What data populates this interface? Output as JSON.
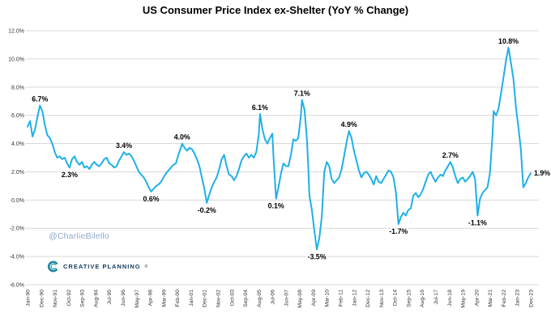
{
  "title": "US Consumer Price Index ex-Shelter (YoY % Change)",
  "watermark": {
    "handle": "@CharlieBilello",
    "brand": "CREATIVE PLANNING",
    "reg": "®"
  },
  "chart_data": {
    "type": "line",
    "title": "US Consumer Price Index ex-Shelter (YoY % Change)",
    "xlabel": "",
    "ylabel": "",
    "ylim": [
      -6,
      12
    ],
    "grid": true,
    "legend": "none",
    "line_color": "#1fb0e8",
    "grid_color": "#d9d9d9",
    "tick_color": "#333333",
    "annotation_color": "#000000",
    "y_ticks": [
      {
        "v": 12,
        "label": "12.0%"
      },
      {
        "v": 10,
        "label": "10.0%"
      },
      {
        "v": 8,
        "label": "8.0%"
      },
      {
        "v": 6,
        "label": "6.0%"
      },
      {
        "v": 4,
        "label": "4.0%"
      },
      {
        "v": 2,
        "label": "2.0%"
      },
      {
        "v": 0,
        "label": "0.0%"
      },
      {
        "v": -2,
        "label": "-2.0%"
      },
      {
        "v": -4,
        "label": "-4.0%"
      },
      {
        "v": -6,
        "label": "-6.0%"
      }
    ],
    "x_tick_month_step": 11,
    "x_domain_months": [
      0,
      407
    ],
    "x_tick_labels": [
      "Jan-90",
      "Dec-90",
      "Nov-91",
      "Oct-92",
      "Sep-93",
      "Aug-94",
      "Jul-95",
      "Jun-96",
      "May-97",
      "Apr-98",
      "Mar-99",
      "Feb-00",
      "Jan-01",
      "Dec-01",
      "Nov-02",
      "Oct-03",
      "Sep-04",
      "Aug-05",
      "Jul-06",
      "Jun-07",
      "May-08",
      "Apr-09",
      "Mar-10",
      "Feb-11",
      "Jan-12",
      "Dec-12",
      "Nov-13",
      "Oct-14",
      "Sep-15",
      "Aug-16",
      "Jul-17",
      "Jun-18",
      "May-19",
      "Apr-20",
      "Mar-21",
      "Feb-22",
      "Jan-23",
      "Dec-23"
    ],
    "series": [
      {
        "name": "US CPI ex-Shelter YoY % Change",
        "points": [
          [
            0,
            5.2
          ],
          [
            2,
            5.6
          ],
          [
            4,
            4.5
          ],
          [
            6,
            5.0
          ],
          [
            8,
            5.9
          ],
          [
            10,
            6.7
          ],
          [
            12,
            6.3
          ],
          [
            14,
            5.3
          ],
          [
            16,
            4.6
          ],
          [
            18,
            4.4
          ],
          [
            20,
            4.0
          ],
          [
            22,
            3.4
          ],
          [
            24,
            3.0
          ],
          [
            26,
            3.1
          ],
          [
            28,
            2.9
          ],
          [
            30,
            3.0
          ],
          [
            32,
            2.6
          ],
          [
            34,
            2.3
          ],
          [
            36,
            2.9
          ],
          [
            38,
            3.1
          ],
          [
            40,
            2.7
          ],
          [
            42,
            2.5
          ],
          [
            44,
            2.7
          ],
          [
            46,
            2.3
          ],
          [
            48,
            2.4
          ],
          [
            50,
            2.2
          ],
          [
            52,
            2.5
          ],
          [
            54,
            2.7
          ],
          [
            56,
            2.5
          ],
          [
            58,
            2.4
          ],
          [
            60,
            2.6
          ],
          [
            62,
            2.9
          ],
          [
            64,
            3.0
          ],
          [
            66,
            2.6
          ],
          [
            68,
            2.5
          ],
          [
            70,
            2.3
          ],
          [
            72,
            2.4
          ],
          [
            74,
            2.8
          ],
          [
            76,
            3.1
          ],
          [
            78,
            3.4
          ],
          [
            80,
            3.2
          ],
          [
            82,
            3.3
          ],
          [
            84,
            3.1
          ],
          [
            86,
            2.8
          ],
          [
            88,
            2.4
          ],
          [
            90,
            2.0
          ],
          [
            92,
            1.8
          ],
          [
            94,
            1.6
          ],
          [
            96,
            1.3
          ],
          [
            98,
            0.9
          ],
          [
            100,
            0.6
          ],
          [
            102,
            0.8
          ],
          [
            104,
            1.0
          ],
          [
            106,
            1.1
          ],
          [
            108,
            1.3
          ],
          [
            110,
            1.6
          ],
          [
            112,
            1.9
          ],
          [
            114,
            2.1
          ],
          [
            116,
            2.3
          ],
          [
            118,
            2.5
          ],
          [
            120,
            2.6
          ],
          [
            122,
            3.2
          ],
          [
            124,
            3.7
          ],
          [
            125,
            4.0
          ],
          [
            127,
            3.7
          ],
          [
            129,
            3.5
          ],
          [
            131,
            3.7
          ],
          [
            133,
            3.6
          ],
          [
            135,
            3.3
          ],
          [
            137,
            2.9
          ],
          [
            139,
            2.4
          ],
          [
            141,
            1.6
          ],
          [
            143,
            0.8
          ],
          [
            145,
            -0.2
          ],
          [
            147,
            0.4
          ],
          [
            149,
            0.9
          ],
          [
            151,
            1.3
          ],
          [
            153,
            1.6
          ],
          [
            155,
            2.2
          ],
          [
            157,
            2.9
          ],
          [
            159,
            3.2
          ],
          [
            161,
            2.4
          ],
          [
            163,
            1.8
          ],
          [
            165,
            1.7
          ],
          [
            167,
            1.4
          ],
          [
            169,
            1.7
          ],
          [
            171,
            2.2
          ],
          [
            173,
            2.8
          ],
          [
            175,
            3.1
          ],
          [
            177,
            3.3
          ],
          [
            179,
            3.0
          ],
          [
            181,
            3.2
          ],
          [
            183,
            3.0
          ],
          [
            185,
            3.4
          ],
          [
            187,
            4.6
          ],
          [
            188,
            6.1
          ],
          [
            190,
            5.0
          ],
          [
            192,
            4.3
          ],
          [
            194,
            4.0
          ],
          [
            196,
            4.4
          ],
          [
            198,
            4.7
          ],
          [
            199,
            3.0
          ],
          [
            201,
            0.1
          ],
          [
            203,
            0.9
          ],
          [
            205,
            1.9
          ],
          [
            207,
            2.6
          ],
          [
            209,
            2.4
          ],
          [
            211,
            2.4
          ],
          [
            213,
            3.2
          ],
          [
            215,
            4.3
          ],
          [
            217,
            4.2
          ],
          [
            219,
            4.4
          ],
          [
            221,
            5.9
          ],
          [
            222,
            7.1
          ],
          [
            224,
            6.4
          ],
          [
            226,
            4.3
          ],
          [
            227,
            2.4
          ],
          [
            228,
            0.3
          ],
          [
            230,
            -0.7
          ],
          [
            232,
            -2.2
          ],
          [
            234,
            -3.5
          ],
          [
            236,
            -2.7
          ],
          [
            238,
            -1.2
          ],
          [
            240,
            2.0
          ],
          [
            242,
            2.7
          ],
          [
            244,
            2.4
          ],
          [
            246,
            1.5
          ],
          [
            248,
            1.2
          ],
          [
            250,
            1.4
          ],
          [
            252,
            1.6
          ],
          [
            254,
            2.2
          ],
          [
            256,
            3.1
          ],
          [
            258,
            4.1
          ],
          [
            260,
            4.9
          ],
          [
            262,
            4.4
          ],
          [
            264,
            3.5
          ],
          [
            266,
            2.8
          ],
          [
            268,
            2.1
          ],
          [
            270,
            1.6
          ],
          [
            272,
            1.9
          ],
          [
            274,
            2.0
          ],
          [
            276,
            1.8
          ],
          [
            278,
            1.5
          ],
          [
            280,
            1.1
          ],
          [
            282,
            1.7
          ],
          [
            284,
            1.3
          ],
          [
            286,
            1.2
          ],
          [
            288,
            1.5
          ],
          [
            290,
            1.8
          ],
          [
            292,
            2.1
          ],
          [
            294,
            2.0
          ],
          [
            296,
            1.6
          ],
          [
            298,
            0.5
          ],
          [
            300,
            -1.7
          ],
          [
            302,
            -1.2
          ],
          [
            304,
            -0.9
          ],
          [
            306,
            -1.1
          ],
          [
            308,
            -0.7
          ],
          [
            310,
            -0.6
          ],
          [
            312,
            0.3
          ],
          [
            314,
            0.5
          ],
          [
            316,
            0.2
          ],
          [
            318,
            0.4
          ],
          [
            320,
            0.8
          ],
          [
            322,
            1.3
          ],
          [
            324,
            1.8
          ],
          [
            326,
            2.0
          ],
          [
            328,
            1.6
          ],
          [
            330,
            1.3
          ],
          [
            332,
            1.6
          ],
          [
            334,
            1.8
          ],
          [
            336,
            1.7
          ],
          [
            338,
            2.1
          ],
          [
            340,
            2.4
          ],
          [
            342,
            2.7
          ],
          [
            344,
            2.3
          ],
          [
            346,
            1.7
          ],
          [
            348,
            1.2
          ],
          [
            350,
            1.5
          ],
          [
            352,
            1.6
          ],
          [
            354,
            1.3
          ],
          [
            356,
            1.5
          ],
          [
            358,
            1.7
          ],
          [
            360,
            2.0
          ],
          [
            362,
            1.5
          ],
          [
            364,
            -1.1
          ],
          [
            366,
            0.1
          ],
          [
            368,
            0.5
          ],
          [
            370,
            0.7
          ],
          [
            372,
            0.9
          ],
          [
            374,
            1.9
          ],
          [
            376,
            4.5
          ],
          [
            377,
            6.3
          ],
          [
            379,
            6.0
          ],
          [
            381,
            6.5
          ],
          [
            383,
            7.6
          ],
          [
            385,
            8.7
          ],
          [
            387,
            9.9
          ],
          [
            389,
            10.8
          ],
          [
            391,
            9.7
          ],
          [
            393,
            8.6
          ],
          [
            395,
            6.6
          ],
          [
            397,
            5.2
          ],
          [
            399,
            3.6
          ],
          [
            401,
            0.9
          ],
          [
            403,
            1.2
          ],
          [
            405,
            1.6
          ],
          [
            407,
            1.9
          ]
        ]
      }
    ],
    "annotations": [
      {
        "label": "6.7%",
        "m": 10,
        "v": 6.7,
        "pos": "above"
      },
      {
        "label": "2.3%",
        "m": 34,
        "v": 2.3,
        "pos": "below"
      },
      {
        "label": "3.4%",
        "m": 78,
        "v": 3.4,
        "pos": "above"
      },
      {
        "label": "0.6%",
        "m": 100,
        "v": 0.6,
        "pos": "below"
      },
      {
        "label": "4.0%",
        "m": 125,
        "v": 4.0,
        "pos": "above"
      },
      {
        "label": "-0.2%",
        "m": 145,
        "v": -0.2,
        "pos": "below"
      },
      {
        "label": "6.1%",
        "m": 188,
        "v": 6.1,
        "pos": "above"
      },
      {
        "label": "0.1%",
        "m": 201,
        "v": 0.1,
        "pos": "below"
      },
      {
        "label": "7.1%",
        "m": 222,
        "v": 7.1,
        "pos": "above"
      },
      {
        "label": "-3.5%",
        "m": 234,
        "v": -3.5,
        "pos": "below"
      },
      {
        "label": "4.9%",
        "m": 260,
        "v": 4.9,
        "pos": "above"
      },
      {
        "label": "-1.7%",
        "m": 300,
        "v": -1.7,
        "pos": "below"
      },
      {
        "label": "2.7%",
        "m": 342,
        "v": 2.7,
        "pos": "above"
      },
      {
        "label": "-1.1%",
        "m": 364,
        "v": -1.1,
        "pos": "below"
      },
      {
        "label": "10.8%",
        "m": 389,
        "v": 10.8,
        "pos": "above"
      },
      {
        "label": "1.9%",
        "m": 407,
        "v": 1.9,
        "pos": "right"
      }
    ]
  }
}
